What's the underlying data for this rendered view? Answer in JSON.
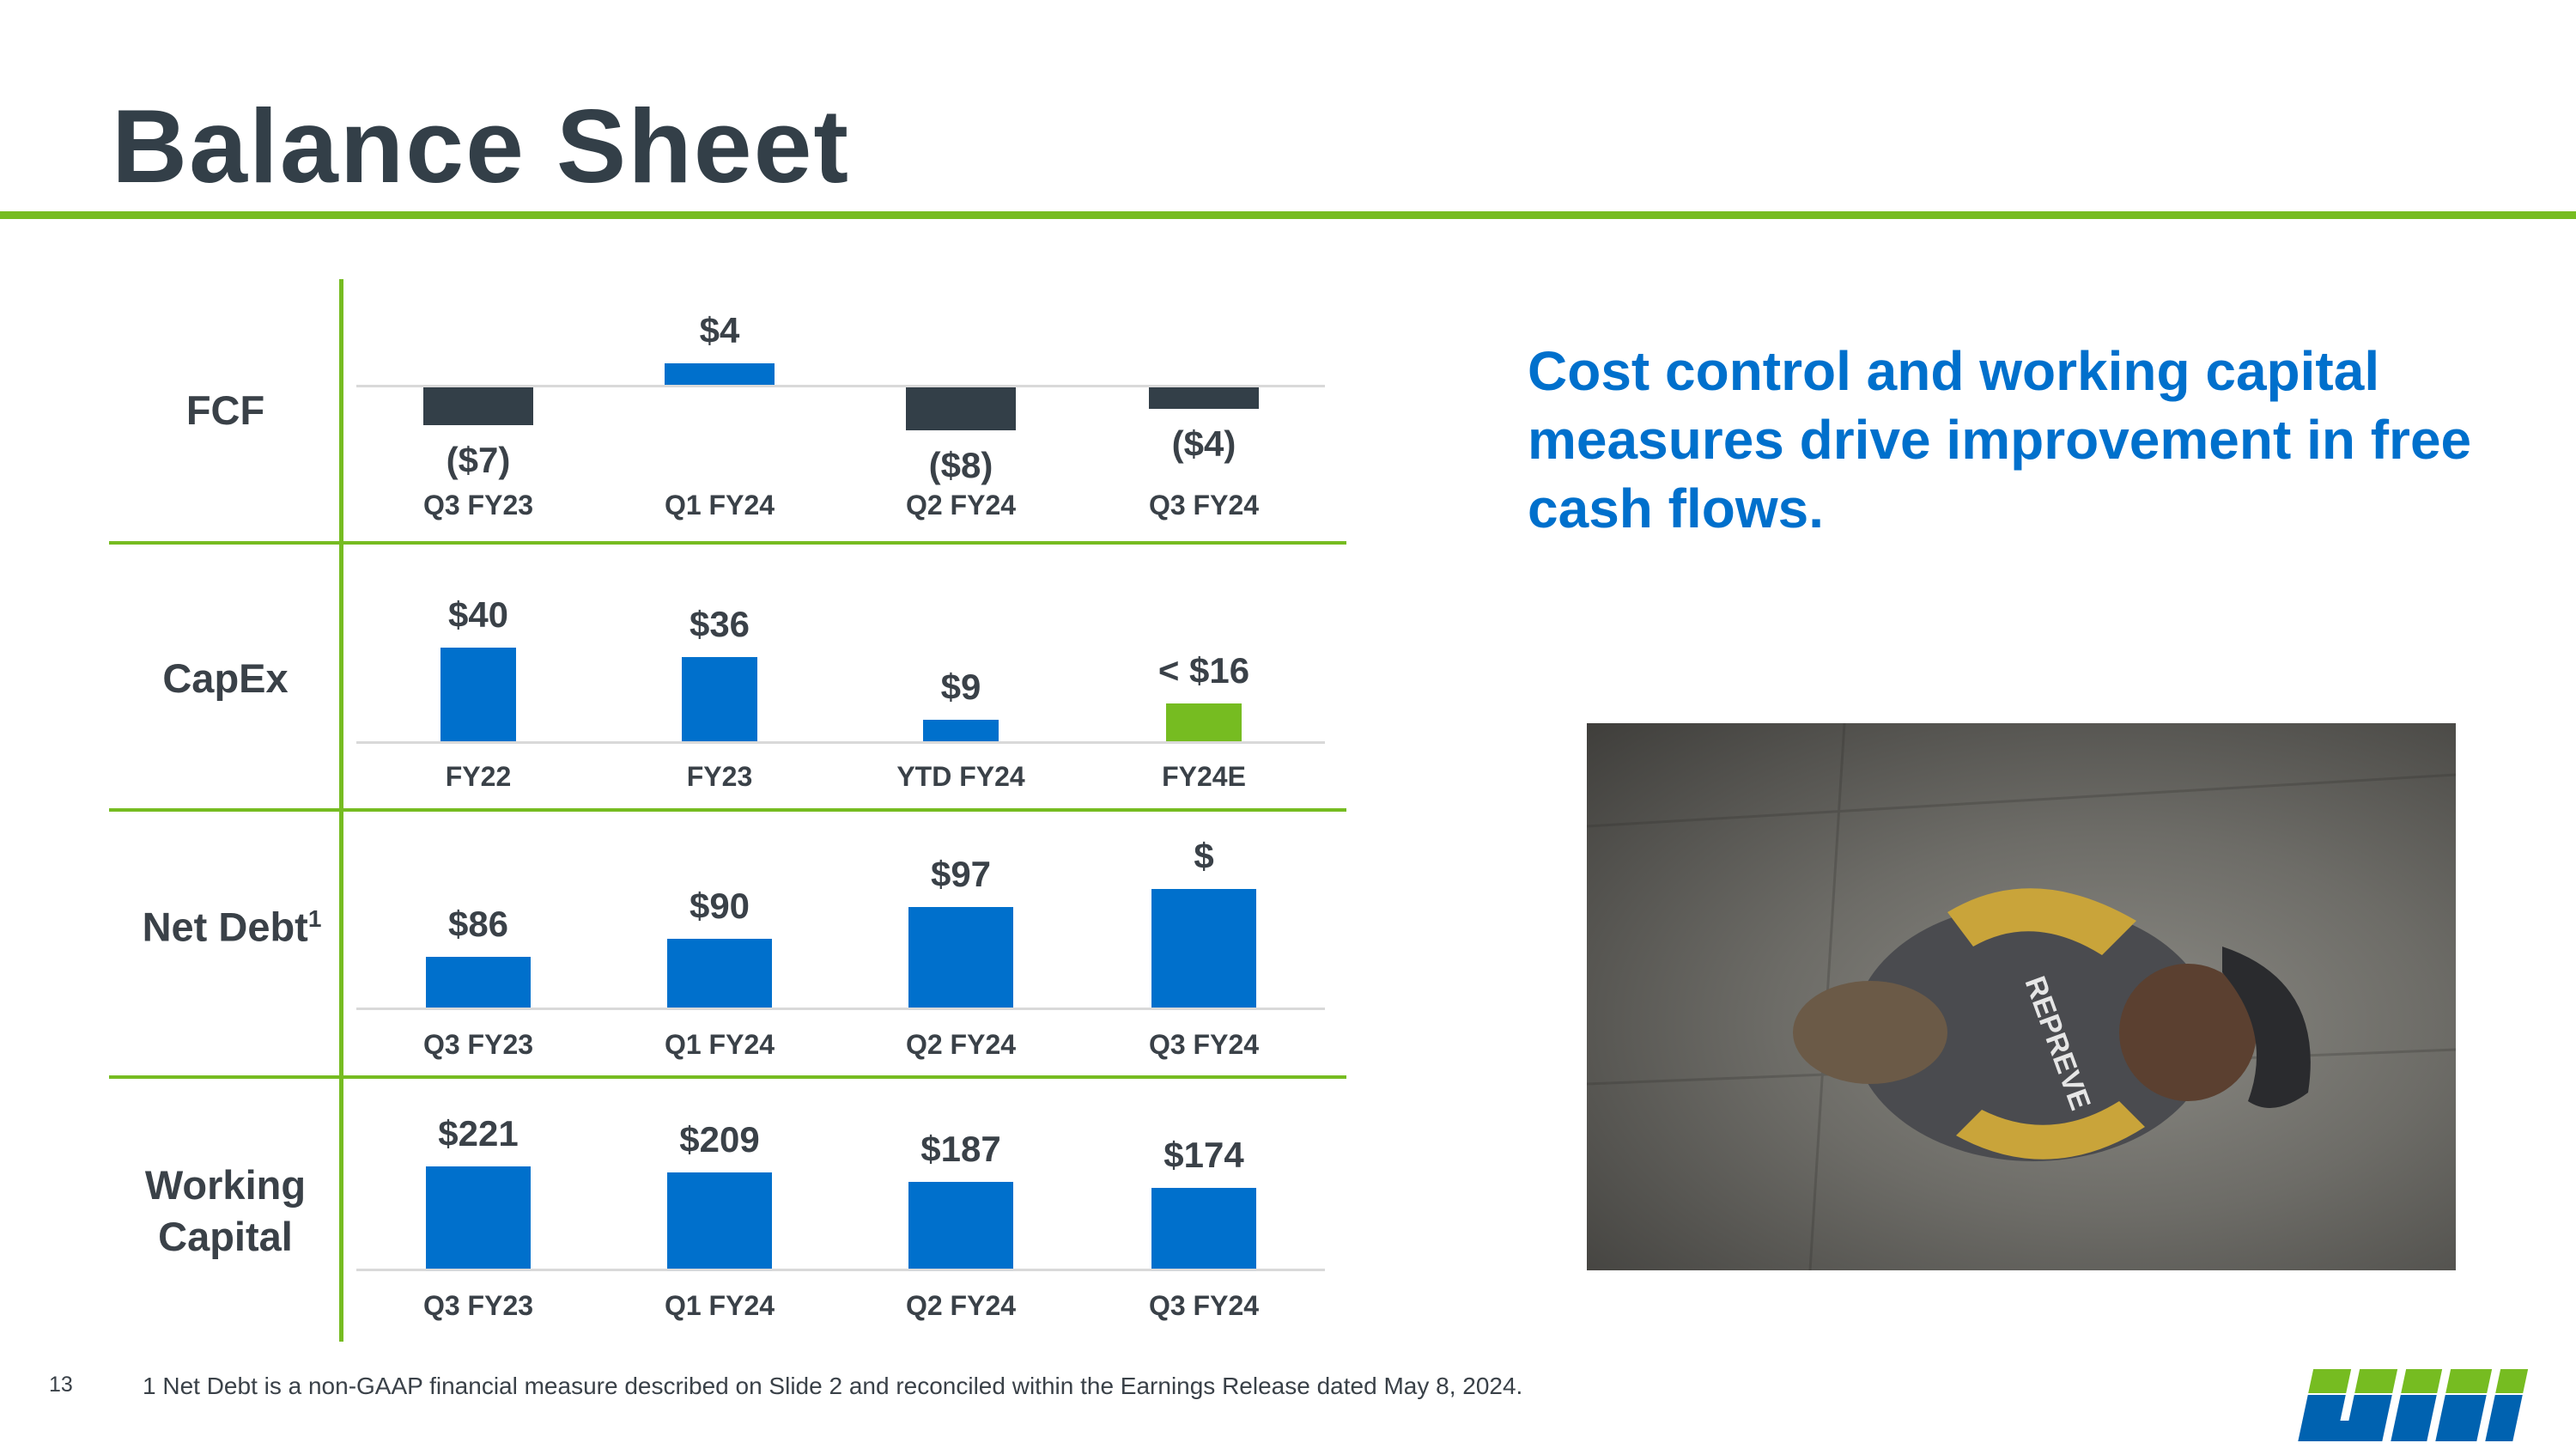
{
  "title": "Balance Sheet",
  "headline": "Cost control and working capital measures drive improvement in free cash flows.",
  "page_number": "13",
  "footnote": "1 Net Debt is a non-GAAP financial measure described on Slide 2 and reconciled within the Earnings Release dated May 8, 2024.",
  "logo_text": "UNIFI",
  "photo_alt_text": "REPREVE",
  "colors": {
    "accent_green": "#76bc21",
    "bar_blue": "#0070cc",
    "bar_dark": "#333f48",
    "title": "#333f48"
  },
  "rows": [
    {
      "label": "FCF",
      "sup": ""
    },
    {
      "label": "CapEx",
      "sup": ""
    },
    {
      "label": "Net Debt",
      "sup": "1"
    },
    {
      "label": "Working Capital",
      "sup": ""
    }
  ],
  "chart_data": [
    {
      "type": "bar",
      "title": "FCF",
      "categories": [
        "Q3 FY23",
        "Q1 FY24",
        "Q2 FY24",
        "Q3 FY24"
      ],
      "values": [
        -7,
        4,
        -8,
        -4
      ],
      "labels": [
        "($7)",
        "$4",
        "($8)",
        "($4)"
      ],
      "colors": [
        "#333f48",
        "#0070cc",
        "#333f48",
        "#333f48"
      ]
    },
    {
      "type": "bar",
      "title": "CapEx",
      "categories": [
        "FY22",
        "FY23",
        "YTD FY24",
        "FY24E"
      ],
      "values": [
        40,
        36,
        9,
        16
      ],
      "labels": [
        "$40",
        "$36",
        "$9",
        "< $16"
      ],
      "colors": [
        "#0070cc",
        "#0070cc",
        "#0070cc",
        "#76bc21"
      ]
    },
    {
      "type": "bar",
      "title": "Net Debt",
      "categories": [
        "Q3 FY23",
        "Q1 FY24",
        "Q2 FY24",
        "Q3 FY24"
      ],
      "values": [
        86,
        90,
        97,
        101
      ],
      "labels": [
        "$86",
        "$90",
        "$97",
        "$"
      ],
      "colors": [
        "#0070cc",
        "#0070cc",
        "#0070cc",
        "#0070cc"
      ]
    },
    {
      "type": "bar",
      "title": "Working Capital",
      "categories": [
        "Q3 FY23",
        "Q1 FY24",
        "Q2 FY24",
        "Q3 FY24"
      ],
      "values": [
        221,
        209,
        187,
        174
      ],
      "labels": [
        "$221",
        "$209",
        "$187",
        "$174"
      ],
      "colors": [
        "#0070cc",
        "#0070cc",
        "#0070cc",
        "#0070cc"
      ]
    }
  ]
}
